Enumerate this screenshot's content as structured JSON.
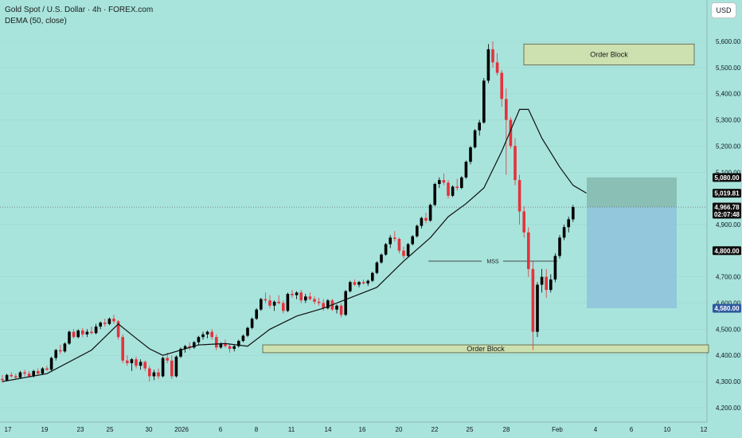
{
  "header": {
    "title": "Gold Spot / U.S. Dollar · 4h · FOREX.com",
    "indicator": "DEMA (50, close)"
  },
  "currency_button": "USD",
  "chart_data": {
    "type": "candlestick",
    "symbol": "Gold Spot / U.S. Dollar",
    "timeframe": "4h",
    "indicator": "DEMA (50, close)",
    "price_axis": {
      "ticks": [
        {
          "value": 5600,
          "label": "5,600.00"
        },
        {
          "value": 5500,
          "label": "5,500.00"
        },
        {
          "value": 5400,
          "label": "5,400.00"
        },
        {
          "value": 5300,
          "label": "5,300.00"
        },
        {
          "value": 5200,
          "label": "5,200.00"
        },
        {
          "value": 5100,
          "label": "5,100.00"
        },
        {
          "value": 4900,
          "label": "4,900.00"
        },
        {
          "value": 4700,
          "label": "4,700.00"
        },
        {
          "value": 4600,
          "label": "4,600.00"
        },
        {
          "value": 4500,
          "label": "4,500.00"
        },
        {
          "value": 4400,
          "label": "4,400.00"
        },
        {
          "value": 4300,
          "label": "4,300.00"
        },
        {
          "value": 4200,
          "label": "4,200.00"
        }
      ]
    },
    "time_axis": {
      "labels": [
        "17",
        "19",
        "23",
        "25",
        "30",
        "2026",
        "6",
        "8",
        "11",
        "14",
        "16",
        "20",
        "22",
        "25",
        "28",
        "Feb",
        "4",
        "6",
        "10",
        "12"
      ]
    },
    "price_tags": [
      {
        "label": "5,080.00",
        "value": 5080,
        "style": "dark"
      },
      {
        "label": "5,019.81",
        "value": 5019.81,
        "style": "dark"
      },
      {
        "label": "4,966.78",
        "sublabel": "02:07:48",
        "value": 4966.78,
        "style": "dark"
      },
      {
        "label": "4,800.00",
        "value": 4800,
        "style": "dark"
      },
      {
        "label": "4,580.00",
        "value": 4580,
        "style": "blue"
      }
    ],
    "last_price": 4966.78,
    "annotations": {
      "order_block_top": {
        "label": "Order Block",
        "low": 5510,
        "high": 5590
      },
      "order_block_bottom": {
        "label": "Order Block",
        "low": 4410,
        "high": 4440
      },
      "mss": {
        "label": "MSS",
        "value": 4760
      },
      "position": {
        "entry": 4966.78,
        "stop": 5080,
        "target": 4580
      }
    },
    "candles": [
      [
        4310,
        4325,
        4295,
        4305
      ],
      [
        4305,
        4330,
        4300,
        4325
      ],
      [
        4325,
        4335,
        4315,
        4320
      ],
      [
        4320,
        4330,
        4310,
        4315
      ],
      [
        4315,
        4340,
        4310,
        4335
      ],
      [
        4335,
        4345,
        4320,
        4330
      ],
      [
        4330,
        4340,
        4315,
        4320
      ],
      [
        4320,
        4345,
        4315,
        4340
      ],
      [
        4340,
        4350,
        4325,
        4330
      ],
      [
        4330,
        4355,
        4325,
        4350
      ],
      [
        4350,
        4360,
        4340,
        4345
      ],
      [
        4345,
        4395,
        4340,
        4390
      ],
      [
        4390,
        4425,
        4380,
        4420
      ],
      [
        4420,
        4440,
        4405,
        4415
      ],
      [
        4415,
        4450,
        4410,
        4445
      ],
      [
        4445,
        4495,
        4440,
        4490
      ],
      [
        4490,
        4500,
        4465,
        4470
      ],
      [
        4470,
        4500,
        4465,
        4495
      ],
      [
        4495,
        4505,
        4470,
        4480
      ],
      [
        4480,
        4500,
        4470,
        4490
      ],
      [
        4490,
        4510,
        4480,
        4485
      ],
      [
        4485,
        4520,
        4480,
        4510
      ],
      [
        4510,
        4530,
        4500,
        4525
      ],
      [
        4525,
        4540,
        4510,
        4520
      ],
      [
        4520,
        4545,
        4515,
        4540
      ],
      [
        4540,
        4555,
        4520,
        4530
      ],
      [
        4530,
        4535,
        4460,
        4470
      ],
      [
        4470,
        4480,
        4370,
        4380
      ],
      [
        4380,
        4400,
        4360,
        4370
      ],
      [
        4370,
        4390,
        4340,
        4385
      ],
      [
        4385,
        4395,
        4350,
        4360
      ],
      [
        4360,
        4385,
        4345,
        4375
      ],
      [
        4375,
        4380,
        4340,
        4350
      ],
      [
        4350,
        4360,
        4300,
        4320
      ],
      [
        4320,
        4345,
        4305,
        4335
      ],
      [
        4335,
        4350,
        4310,
        4320
      ],
      [
        4320,
        4395,
        4315,
        4390
      ],
      [
        4390,
        4410,
        4370,
        4380
      ],
      [
        4380,
        4400,
        4310,
        4320
      ],
      [
        4320,
        4400,
        4315,
        4395
      ],
      [
        4395,
        4430,
        4390,
        4425
      ],
      [
        4425,
        4440,
        4410,
        4435
      ],
      [
        4435,
        4450,
        4420,
        4430
      ],
      [
        4430,
        4455,
        4425,
        4450
      ],
      [
        4450,
        4475,
        4440,
        4470
      ],
      [
        4470,
        4490,
        4460,
        4480
      ],
      [
        4480,
        4495,
        4465,
        4490
      ],
      [
        4490,
        4500,
        4460,
        4470
      ],
      [
        4470,
        4480,
        4420,
        4430
      ],
      [
        4430,
        4450,
        4425,
        4445
      ],
      [
        4445,
        4460,
        4430,
        4435
      ],
      [
        4435,
        4445,
        4410,
        4425
      ],
      [
        4425,
        4440,
        4415,
        4435
      ],
      [
        4435,
        4460,
        4430,
        4455
      ],
      [
        4455,
        4480,
        4450,
        4475
      ],
      [
        4475,
        4510,
        4470,
        4505
      ],
      [
        4505,
        4545,
        4500,
        4540
      ],
      [
        4540,
        4580,
        4535,
        4575
      ],
      [
        4575,
        4620,
        4570,
        4615
      ],
      [
        4615,
        4640,
        4600,
        4610
      ],
      [
        4610,
        4630,
        4580,
        4590
      ],
      [
        4590,
        4610,
        4570,
        4605
      ],
      [
        4605,
        4630,
        4595,
        4600
      ],
      [
        4600,
        4610,
        4560,
        4570
      ],
      [
        4570,
        4640,
        4565,
        4635
      ],
      [
        4635,
        4650,
        4620,
        4630
      ],
      [
        4630,
        4645,
        4615,
        4640
      ],
      [
        4640,
        4650,
        4600,
        4610
      ],
      [
        4610,
        4635,
        4600,
        4625
      ],
      [
        4625,
        4640,
        4610,
        4615
      ],
      [
        4615,
        4625,
        4595,
        4605
      ],
      [
        4605,
        4620,
        4590,
        4600
      ],
      [
        4600,
        4615,
        4570,
        4580
      ],
      [
        4580,
        4615,
        4575,
        4610
      ],
      [
        4610,
        4615,
        4570,
        4575
      ],
      [
        4575,
        4595,
        4560,
        4590
      ],
      [
        4590,
        4600,
        4545,
        4555
      ],
      [
        4555,
        4650,
        4550,
        4645
      ],
      [
        4645,
        4685,
        4640,
        4680
      ],
      [
        4680,
        4690,
        4665,
        4670
      ],
      [
        4670,
        4685,
        4660,
        4680
      ],
      [
        4680,
        4690,
        4670,
        4675
      ],
      [
        4675,
        4690,
        4665,
        4685
      ],
      [
        4685,
        4720,
        4680,
        4715
      ],
      [
        4715,
        4760,
        4710,
        4755
      ],
      [
        4755,
        4790,
        4750,
        4785
      ],
      [
        4785,
        4830,
        4780,
        4825
      ],
      [
        4825,
        4860,
        4810,
        4850
      ],
      [
        4850,
        4875,
        4835,
        4845
      ],
      [
        4845,
        4850,
        4790,
        4800
      ],
      [
        4800,
        4815,
        4770,
        4780
      ],
      [
        4780,
        4830,
        4775,
        4825
      ],
      [
        4825,
        4860,
        4820,
        4855
      ],
      [
        4855,
        4900,
        4850,
        4895
      ],
      [
        4895,
        4930,
        4885,
        4925
      ],
      [
        4925,
        4945,
        4905,
        4915
      ],
      [
        4915,
        4980,
        4910,
        4975
      ],
      [
        4975,
        5060,
        4970,
        5055
      ],
      [
        5055,
        5080,
        5040,
        5070
      ],
      [
        5070,
        5095,
        5050,
        5060
      ],
      [
        5060,
        5070,
        5000,
        5010
      ],
      [
        5010,
        5050,
        5005,
        5045
      ],
      [
        5045,
        5075,
        5030,
        5040
      ],
      [
        5040,
        5085,
        5035,
        5080
      ],
      [
        5080,
        5145,
        5075,
        5140
      ],
      [
        5140,
        5200,
        5130,
        5195
      ],
      [
        5195,
        5265,
        5190,
        5260
      ],
      [
        5260,
        5300,
        5240,
        5290
      ],
      [
        5290,
        5460,
        5285,
        5450
      ],
      [
        5450,
        5590,
        5440,
        5570
      ],
      [
        5570,
        5600,
        5500,
        5520
      ],
      [
        5520,
        5555,
        5470,
        5480
      ],
      [
        5480,
        5490,
        5350,
        5380
      ],
      [
        5380,
        5420,
        5090,
        5300
      ],
      [
        5300,
        5310,
        5190,
        5200
      ],
      [
        5200,
        5230,
        5050,
        5070
      ],
      [
        5070,
        5090,
        4900,
        4950
      ],
      [
        4950,
        4970,
        4850,
        4870
      ],
      [
        4870,
        4890,
        4700,
        4730
      ],
      [
        4730,
        4760,
        4420,
        4490
      ],
      [
        4490,
        4680,
        4470,
        4670
      ],
      [
        4670,
        4730,
        4640,
        4700
      ],
      [
        4700,
        4730,
        4620,
        4650
      ],
      [
        4650,
        4710,
        4640,
        4690
      ],
      [
        4690,
        4790,
        4680,
        4780
      ],
      [
        4780,
        4860,
        4770,
        4850
      ],
      [
        4850,
        4900,
        4840,
        4890
      ],
      [
        4890,
        4930,
        4870,
        4920
      ],
      [
        4920,
        4975,
        4910,
        4966.78
      ]
    ],
    "dema": [
      [
        0,
        4300
      ],
      [
        10,
        4330
      ],
      [
        20,
        4420
      ],
      [
        26,
        4520
      ],
      [
        30,
        4465
      ],
      [
        33,
        4425
      ],
      [
        36,
        4400
      ],
      [
        44,
        4440
      ],
      [
        50,
        4445
      ],
      [
        55,
        4435
      ],
      [
        60,
        4500
      ],
      [
        66,
        4550
      ],
      [
        72,
        4580
      ],
      [
        78,
        4620
      ],
      [
        84,
        4660
      ],
      [
        90,
        4760
      ],
      [
        96,
        4850
      ],
      [
        100,
        4930
      ],
      [
        104,
        4980
      ],
      [
        108,
        5040
      ],
      [
        112,
        5180
      ],
      [
        116,
        5340
      ],
      [
        118,
        5340
      ],
      [
        121,
        5230
      ],
      [
        125,
        5120
      ],
      [
        128,
        5050
      ],
      [
        131,
        5020
      ]
    ]
  }
}
